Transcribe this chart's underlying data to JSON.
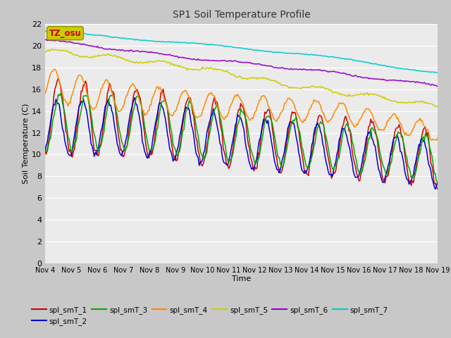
{
  "title": "SP1 Soil Temperature Profile",
  "xlabel": "Time",
  "ylabel": "Soil Temperature (C)",
  "ylim": [
    0,
    22
  ],
  "yticks": [
    0,
    2,
    4,
    6,
    8,
    10,
    12,
    14,
    16,
    18,
    20,
    22
  ],
  "xtick_labels": [
    "Nov 4",
    "Nov 5",
    "Nov 6",
    "Nov 7",
    "Nov 8",
    "Nov 9",
    "Nov 10",
    "Nov 11",
    "Nov 12",
    "Nov 13",
    "Nov 14",
    "Nov 15",
    "Nov 16",
    "Nov 17",
    "Nov 18",
    "Nov 19"
  ],
  "series_colors": {
    "spl_smT_1": "#cc0000",
    "spl_smT_2": "#0000cc",
    "spl_smT_3": "#00aa00",
    "spl_smT_4": "#ff8800",
    "spl_smT_5": "#cccc00",
    "spl_smT_6": "#9900cc",
    "spl_smT_7": "#00cccc"
  },
  "annotation_text": "TZ_osu",
  "annotation_color": "#cc0000",
  "annotation_bg": "#cccc00",
  "fig_bg": "#c8c8c8",
  "plot_bg": "#ebebeb",
  "grid_color": "#ffffff",
  "legend_order": [
    "spl_smT_1",
    "spl_smT_2",
    "spl_smT_3",
    "spl_smT_4",
    "spl_smT_5",
    "spl_smT_6",
    "spl_smT_7"
  ]
}
